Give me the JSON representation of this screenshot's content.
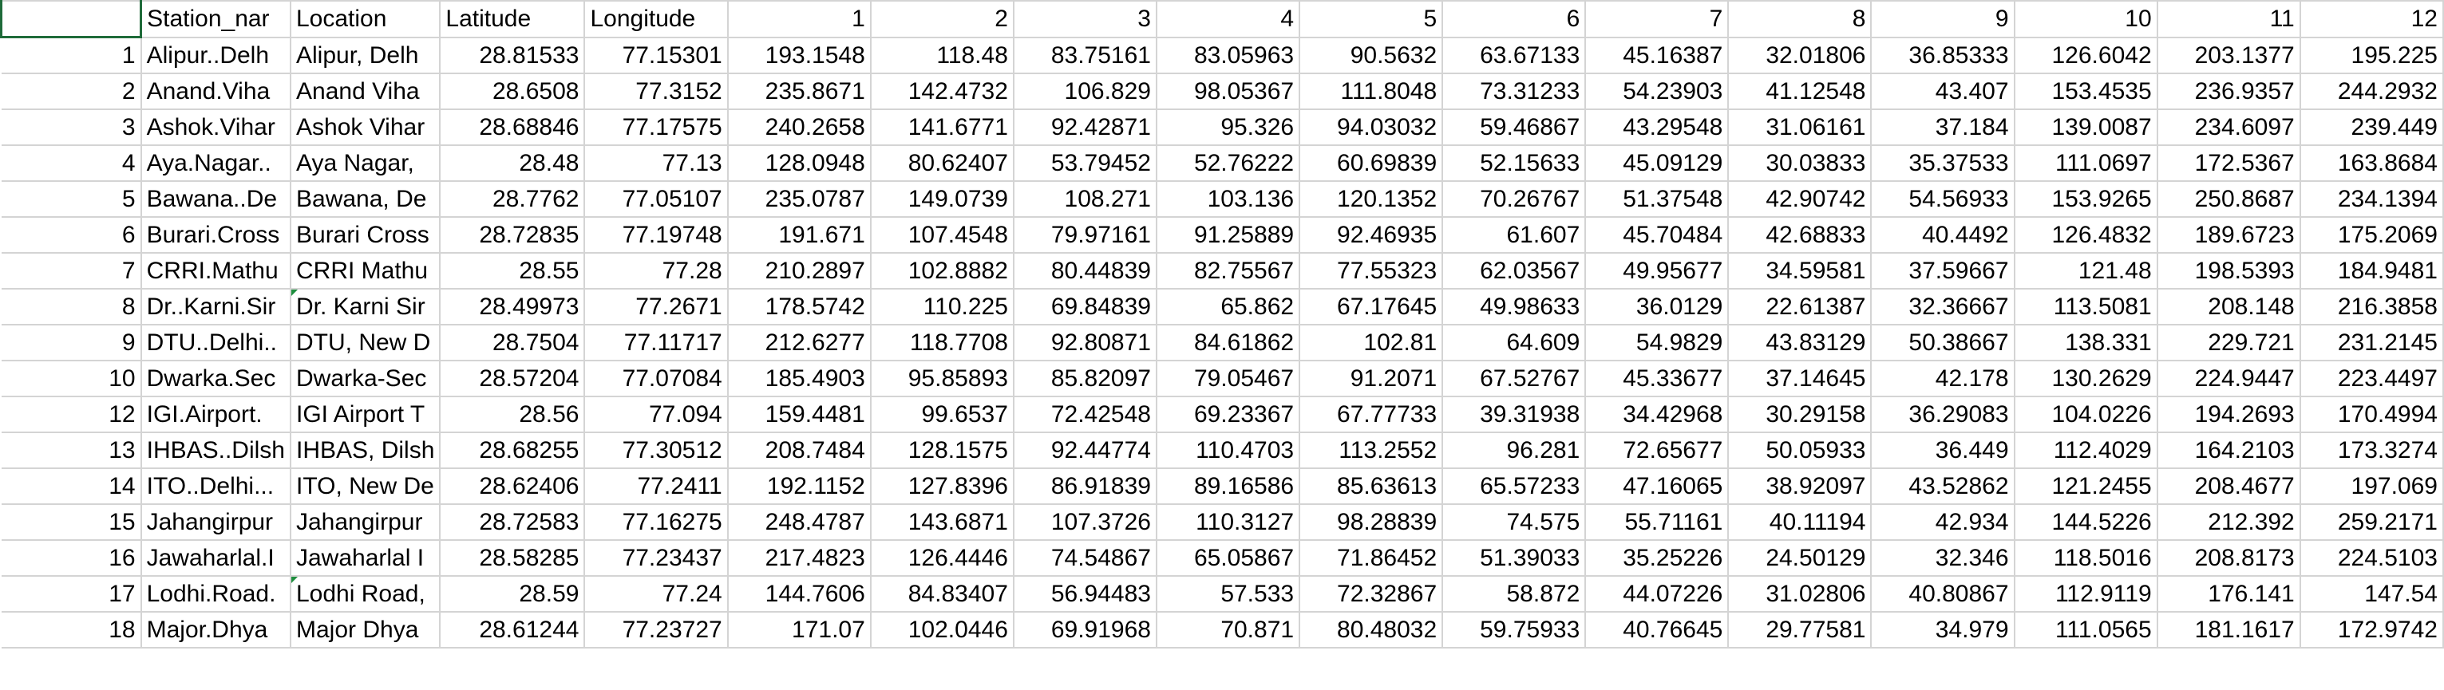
{
  "sheet": {
    "header": [
      "",
      "Station_nar",
      "Location",
      "Latitude",
      "Longitude",
      "1",
      "2",
      "3",
      "4",
      "5",
      "6",
      "7",
      "8",
      "9",
      "10",
      "11",
      "12"
    ],
    "rows": [
      [
        "1",
        "Alipur..Delh",
        "Alipur, Delh",
        "28.81533",
        "77.15301",
        "193.1548",
        "118.48",
        "83.75161",
        "83.05963",
        "90.5632",
        "63.67133",
        "45.16387",
        "32.01806",
        "36.85333",
        "126.6042",
        "203.1377",
        "195.225"
      ],
      [
        "2",
        "Anand.Viha",
        "Anand Viha",
        "28.6508",
        "77.3152",
        "235.8671",
        "142.4732",
        "106.829",
        "98.05367",
        "111.8048",
        "73.31233",
        "54.23903",
        "41.12548",
        "43.407",
        "153.4535",
        "236.9357",
        "244.2932"
      ],
      [
        "3",
        "Ashok.Vihar",
        "Ashok Vihar",
        "28.68846",
        "77.17575",
        "240.2658",
        "141.6771",
        "92.42871",
        "95.326",
        "94.03032",
        "59.46867",
        "43.29548",
        "31.06161",
        "37.184",
        "139.0087",
        "234.6097",
        "239.449"
      ],
      [
        "4",
        "Aya.Nagar..",
        "Aya Nagar,",
        "28.48",
        "77.13",
        "128.0948",
        "80.62407",
        "53.79452",
        "52.76222",
        "60.69839",
        "52.15633",
        "45.09129",
        "30.03833",
        "35.37533",
        "111.0697",
        "172.5367",
        "163.8684"
      ],
      [
        "5",
        "Bawana..De",
        "Bawana, De",
        "28.7762",
        "77.05107",
        "235.0787",
        "149.0739",
        "108.271",
        "103.136",
        "120.1352",
        "70.26767",
        "51.37548",
        "42.90742",
        "54.56933",
        "153.9265",
        "250.8687",
        "234.1394"
      ],
      [
        "6",
        "Burari.Cross",
        "Burari Cross",
        "28.72835",
        "77.19748",
        "191.671",
        "107.4548",
        "79.97161",
        "91.25889",
        "92.46935",
        "61.607",
        "45.70484",
        "42.68833",
        "40.4492",
        "126.4832",
        "189.6723",
        "175.2069"
      ],
      [
        "7",
        "CRRI.Mathu",
        "CRRI Mathu",
        "28.55",
        "77.28",
        "210.2897",
        "102.8882",
        "80.44839",
        "82.75567",
        "77.55323",
        "62.03567",
        "49.95677",
        "34.59581",
        "37.59667",
        "121.48",
        "198.5393",
        "184.9481"
      ],
      [
        "8",
        "Dr..Karni.Sir",
        "Dr. Karni Sir",
        "28.49973",
        "77.2671",
        "178.5742",
        "110.225",
        "69.84839",
        "65.862",
        "67.17645",
        "49.98633",
        "36.0129",
        "22.61387",
        "32.36667",
        "113.5081",
        "208.148",
        "216.3858"
      ],
      [
        "9",
        "DTU..Delhi..",
        "DTU, New D",
        "28.7504",
        "77.11717",
        "212.6277",
        "118.7708",
        "92.80871",
        "84.61862",
        "102.81",
        "64.609",
        "54.9829",
        "43.83129",
        "50.38667",
        "138.331",
        "229.721",
        "231.2145"
      ],
      [
        "10",
        "Dwarka.Sec",
        "Dwarka-Sec",
        "28.57204",
        "77.07084",
        "185.4903",
        "95.85893",
        "85.82097",
        "79.05467",
        "91.2071",
        "67.52767",
        "45.33677",
        "37.14645",
        "42.178",
        "130.2629",
        "224.9447",
        "223.4497"
      ],
      [
        "12",
        "IGI.Airport.",
        "IGI Airport T",
        "28.56",
        "77.094",
        "159.4481",
        "99.6537",
        "72.42548",
        "69.23367",
        "67.77733",
        "39.31938",
        "34.42968",
        "30.29158",
        "36.29083",
        "104.0226",
        "194.2693",
        "170.4994"
      ],
      [
        "13",
        "IHBAS..Dilsh",
        "IHBAS, Dilsh",
        "28.68255",
        "77.30512",
        "208.7484",
        "128.1575",
        "92.44774",
        "110.4703",
        "113.2552",
        "96.281",
        "72.65677",
        "50.05933",
        "36.449",
        "112.4029",
        "164.2103",
        "173.3274"
      ],
      [
        "14",
        "ITO..Delhi...",
        "ITO, New De",
        "28.62406",
        "77.2411",
        "192.1152",
        "127.8396",
        "86.91839",
        "89.16586",
        "85.63613",
        "65.57233",
        "47.16065",
        "38.92097",
        "43.52862",
        "121.2455",
        "208.4677",
        "197.069"
      ],
      [
        "15",
        "Jahangirpur",
        "Jahangirpur",
        "28.72583",
        "77.16275",
        "248.4787",
        "143.6871",
        "107.3726",
        "110.3127",
        "98.28839",
        "74.575",
        "55.71161",
        "40.11194",
        "42.934",
        "144.5226",
        "212.392",
        "259.2171"
      ],
      [
        "16",
        "Jawaharlal.I",
        "Jawaharlal I",
        "28.58285",
        "77.23437",
        "217.4823",
        "126.4446",
        "74.54867",
        "65.05867",
        "71.86452",
        "51.39033",
        "35.25226",
        "24.50129",
        "32.346",
        "118.5016",
        "208.8173",
        "224.5103"
      ],
      [
        "17",
        "Lodhi.Road.",
        "Lodhi Road,",
        "28.59",
        "77.24",
        "144.7606",
        "84.83407",
        "56.94483",
        "57.533",
        "72.32867",
        "58.872",
        "44.07226",
        "31.02806",
        "40.80867",
        "112.9119",
        "176.141",
        "147.54"
      ],
      [
        "18",
        "Major.Dhya",
        "Major Dhya",
        "28.61244",
        "77.23727",
        "171.07",
        "102.0446",
        "69.91968",
        "70.871",
        "80.48032",
        "59.75933",
        "40.76645",
        "29.77581",
        "34.979",
        "111.0565",
        "181.1617",
        "172.9742"
      ]
    ]
  }
}
